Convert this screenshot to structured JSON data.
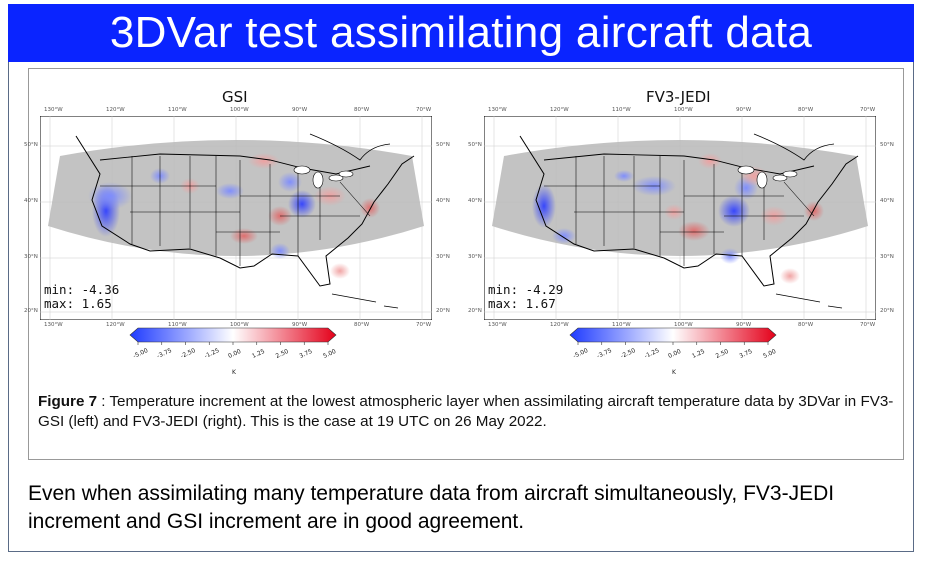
{
  "slide": {
    "title": "3DVar test assimilating aircraft data",
    "colors": {
      "title_bg": "#0a24ff",
      "title_text": "#ffffff"
    }
  },
  "panels": [
    {
      "title": "GSI",
      "min_label": "min: -4.36",
      "max_label": "max: 1.65",
      "lon_ticks": [
        "130°W",
        "120°W",
        "110°W",
        "100°W",
        "90°W",
        "80°W",
        "70°W"
      ],
      "lat_ticks": [
        "50°N",
        "40°N",
        "30°N",
        "20°N"
      ]
    },
    {
      "title": "FV3-JEDI",
      "min_label": "min: -4.29",
      "max_label": "max: 1.67",
      "lon_ticks": [
        "130°W",
        "120°W",
        "110°W",
        "100°W",
        "90°W",
        "80°W",
        "70°W"
      ],
      "lat_ticks": [
        "50°N",
        "40°N",
        "30°N",
        "20°N"
      ]
    }
  ],
  "colorbar": {
    "ticks": [
      "-5.00",
      "-3.75",
      "-2.50",
      "-1.25",
      "0.00",
      "1.25",
      "2.50",
      "3.75",
      "5.00"
    ],
    "unit": "K",
    "colors": {
      "low": "#1f3bff",
      "mid": "#ffffff",
      "high": "#e4001a"
    }
  },
  "caption": {
    "label": "Figure 7",
    "text": " : Temperature increment at the lowest atmospheric layer when assimilating aircraft temperature data by 3DVar in FV3-GSI (left) and FV3-JEDI (right). This is the case at 19 UTC on 26 May 2022."
  },
  "conclusion": "Even when assimilating many temperature data from aircraft simultaneously, FV3-JEDI increment and GSI increment are in good agreement."
}
